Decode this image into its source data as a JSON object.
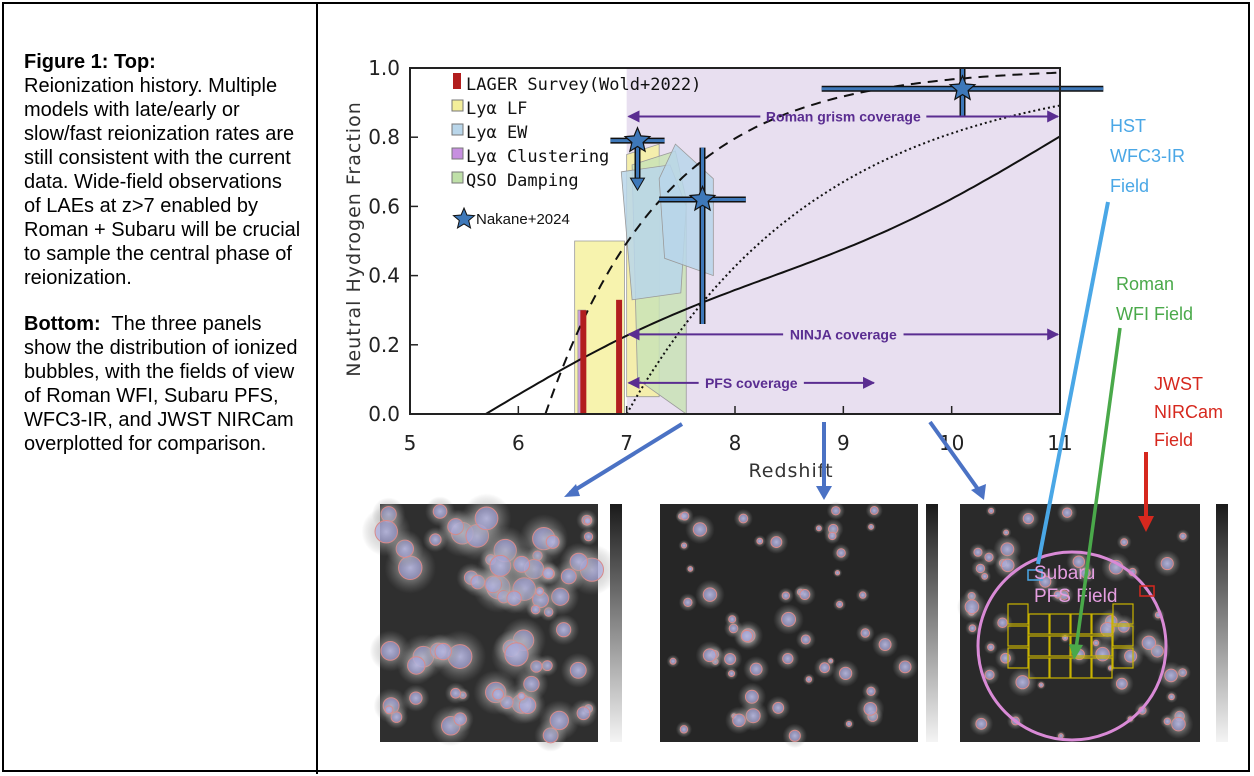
{
  "caption": {
    "top_heading": "Figure 1: Top:",
    "top_text": "Reionization history. Multiple models with late/early or slow/fast reionization rates are still consistent with the current data. Wide-field observations of LAEs at z>7 enabled by Roman + Subaru will be crucial to sample the central phase of reionization.",
    "bottom_heading": "Bottom:",
    "bottom_text": "The three panels show the distribution of ionized bubbles, with the fields of view of Roman WFI, Subaru PFS, WFC3-IR, and JWST NIRCam overplotted for comparison."
  },
  "chart_data": {
    "type": "scatter",
    "xlabel": "Redshift",
    "ylabel": "Neutral Hydrogen Fraction",
    "xlim": [
      5,
      11
    ],
    "ylim": [
      0.0,
      1.0
    ],
    "x_ticks": [
      "5",
      "6",
      "7",
      "8",
      "9",
      "10",
      "11"
    ],
    "y_ticks": [
      "0.0",
      "0.2",
      "0.4",
      "0.6",
      "0.8",
      "1.0"
    ],
    "legend": [
      {
        "label": "LAGER Survey(Wold+2022)",
        "color": "#b21e1e"
      },
      {
        "label": "Lyα LF",
        "color": "#f3ee9a"
      },
      {
        "label": "Lyα EW",
        "color": "#b9d6ea"
      },
      {
        "label": "Lyα Clustering",
        "color": "#c78fe0"
      },
      {
        "label": "QSO Damping",
        "color": "#bfe0a8"
      },
      {
        "label": "Nakane+2024",
        "color": "#3e78b9"
      }
    ],
    "coverage": [
      {
        "label": "Roman grism coverage",
        "x_start": 7.0,
        "x_end": 11.0,
        "y": 0.86
      },
      {
        "label": "NINJA coverage",
        "x_start": 7.0,
        "x_end": 11.0,
        "y": 0.23
      },
      {
        "label": "PFS coverage",
        "x_start": 7.0,
        "x_end": 9.3,
        "y": 0.09
      }
    ],
    "nakane_points": [
      {
        "x": 7.1,
        "y": 0.79,
        "xerr": 0.25,
        "yerr_low": 0.12,
        "yerr_high": 0.0,
        "upper_limit": true
      },
      {
        "x": 7.7,
        "y": 0.62,
        "xerr": 0.4,
        "yerr_low": 0.36,
        "yerr_high": 0.15
      },
      {
        "x": 10.1,
        "y": 0.94,
        "xerr": 1.3,
        "yerr_low": 0.08,
        "yerr_high": 0.06
      }
    ],
    "lager_points": [
      {
        "x": 6.6,
        "y": 0.15,
        "y_low": 0.0,
        "y_high": 0.3
      },
      {
        "x": 6.93,
        "y": 0.16,
        "y_low": 0.0,
        "y_high": 0.33
      }
    ]
  },
  "annotations": {
    "hst": [
      "HST",
      "WFC3-IR",
      "Field"
    ],
    "roman": [
      "Roman",
      "WFI Field"
    ],
    "jwst": [
      "JWST",
      "NIRCam",
      "Field"
    ],
    "subaru": [
      "Subaru",
      "PFS Field"
    ]
  },
  "colors": {
    "coverage_shade": "#e8dff0",
    "arrow_purple": "#5a2d91",
    "arrow_blue": "#4b72c4",
    "hst_blue": "#4aa7e6",
    "roman_green": "#4aa94a",
    "jwst_red": "#d6281e",
    "pfs_pink": "#d98ad6"
  }
}
